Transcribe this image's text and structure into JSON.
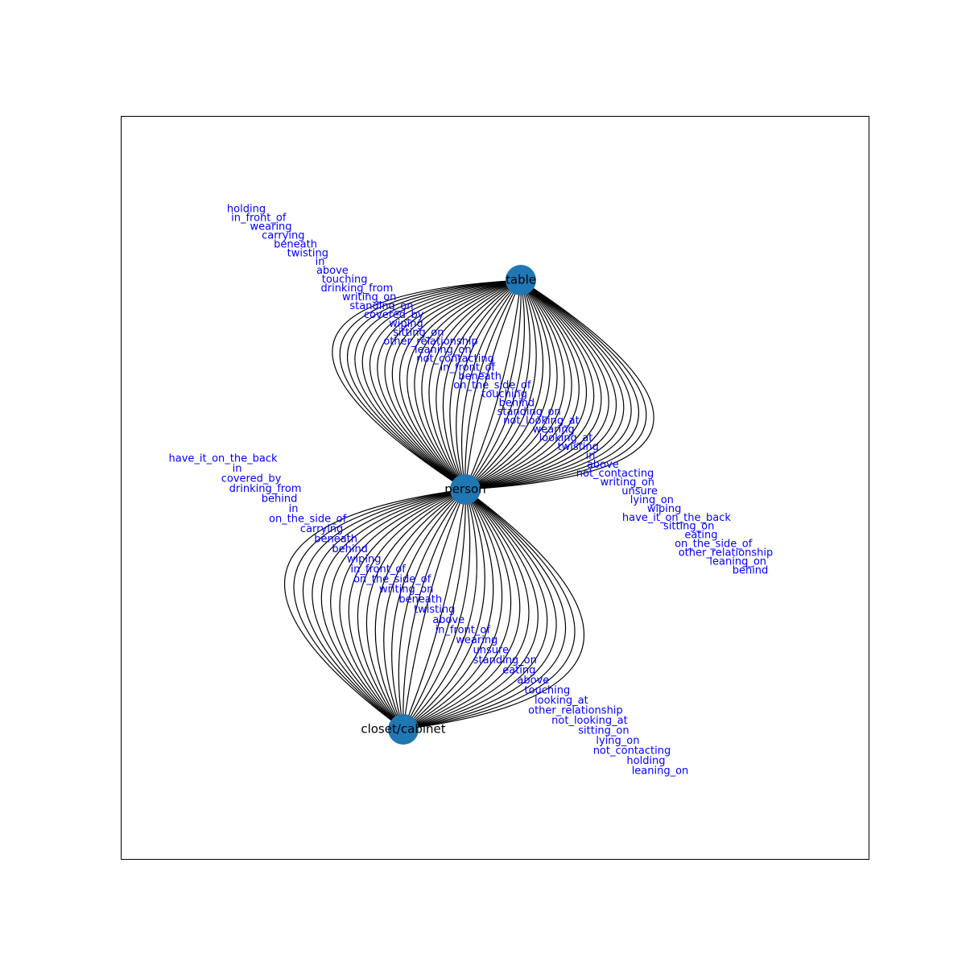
{
  "colors": {
    "node": "#1f77b4",
    "edge": "#000000",
    "edge_label": "#0000ff",
    "frame": "#000000"
  },
  "nodes": [
    {
      "id": "table",
      "label": "table"
    },
    {
      "id": "person",
      "label": "person"
    },
    {
      "id": "closet",
      "label": "closet/cabinet"
    }
  ],
  "edge_groups": [
    {
      "source": "person",
      "target": "table",
      "labels_upper": [
        "holding",
        "in_front_of",
        "wearing",
        "carrying",
        "beneath",
        "twisting",
        "in",
        "above",
        "touching",
        "drinking_from",
        "writing_on",
        "standing_on",
        "covered_by",
        "wiping",
        "sitting_on",
        "other_relationship",
        "leaning_on",
        "not_contacting",
        "in_front_of",
        "beneath",
        "on_the_side_of",
        "touching",
        "behind",
        "standing_on",
        "not_looking_at",
        "wearing",
        "looking_at",
        "twisting",
        "in",
        "above",
        "not_contacting",
        "writing_on",
        "unsure",
        "lying_on",
        "wiping",
        "have_it_on_the_back",
        "sitting_on",
        "eating",
        "on_the_side_of",
        "other_relationship",
        "leaning_on",
        "behind"
      ]
    },
    {
      "source": "person",
      "target": "closet",
      "labels_upper": [
        "have_it_on_the_back",
        "in",
        "covered_by",
        "drinking_from",
        "behind",
        "in",
        "on_the_side_of",
        "carrying",
        "beneath",
        "behind",
        "wiping",
        "in_front_of",
        "on_the_side_of",
        "writing_on",
        "beneath",
        "twisting",
        "above",
        "in_front_of",
        "wearing",
        "unsure",
        "standing_on",
        "eating",
        "above",
        "touching",
        "looking_at",
        "other_relationship",
        "not_looking_at",
        "sitting_on",
        "lying_on",
        "not_contacting",
        "holding",
        "leaning_on"
      ]
    }
  ]
}
